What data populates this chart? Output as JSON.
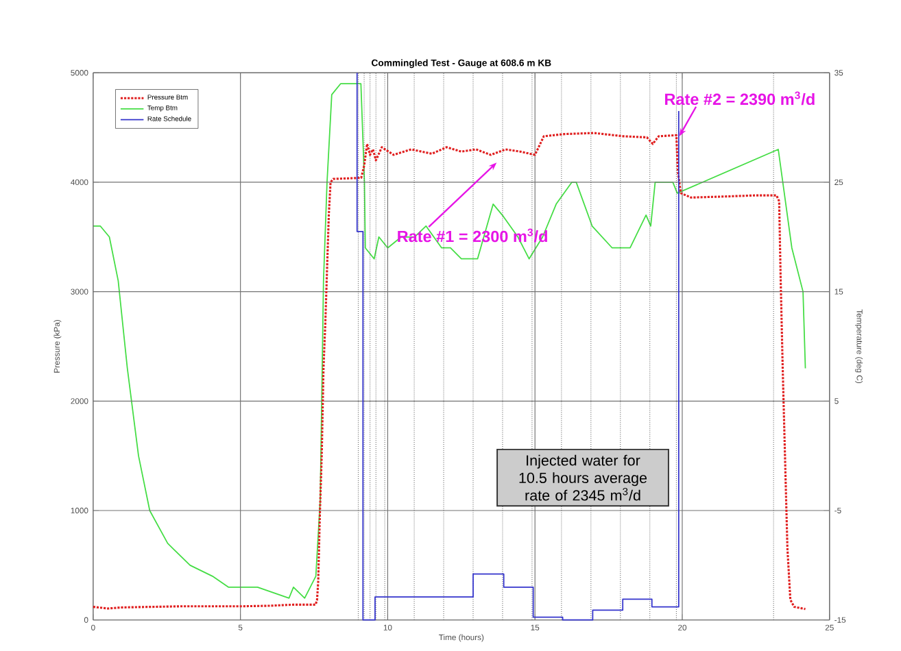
{
  "chart_data": {
    "type": "line",
    "title": "Commingled Test - Gauge at 608.6 m KB",
    "xlabel": "Time (hours)",
    "ylabel": "Pressure (kPa)",
    "y2label": "Temperature (deg C)",
    "xlim": [
      0,
      25
    ],
    "xticks": [
      0,
      5,
      10,
      15,
      20,
      25
    ],
    "ylim": [
      0,
      5000
    ],
    "yticks": [
      0,
      1000,
      2000,
      3000,
      4000,
      5000
    ],
    "y2lim": [
      -15,
      35
    ],
    "y2ticks": [
      -15,
      -5,
      5,
      15,
      25,
      35
    ],
    "grid": true,
    "legend": "top left",
    "series": [
      {
        "name": "Pressure Btm",
        "color": "#e02020",
        "line_style": "dotted",
        "x": [
          0,
          0.5,
          1,
          2,
          3,
          4,
          5,
          6,
          6.8,
          7.55,
          7.6,
          7.64,
          7.7,
          7.76,
          7.82,
          7.88,
          7.94,
          8.0,
          8.06,
          8.15,
          9.1,
          9.2,
          9.3,
          9.4,
          9.5,
          9.6,
          9.8,
          10.2,
          10.8,
          11.5,
          12,
          12.5,
          13,
          13.5,
          14,
          14.5,
          15,
          15.3,
          16,
          17,
          18,
          18.8,
          19.0,
          19.2,
          19.8,
          19.85,
          19.95,
          20.3,
          21.5,
          22.5,
          23.2,
          23.29,
          23.34,
          23.41,
          23.49,
          23.57,
          23.67,
          23.8,
          24.18
        ],
        "values": [
          120,
          105,
          115,
          120,
          125,
          125,
          125,
          130,
          140,
          140,
          180,
          350,
          1000,
          1500,
          2300,
          2700,
          3200,
          3700,
          4000,
          4030,
          4040,
          4150,
          4350,
          4250,
          4300,
          4200,
          4320,
          4250,
          4300,
          4260,
          4320,
          4280,
          4300,
          4250,
          4300,
          4280,
          4250,
          4420,
          4440,
          4450,
          4420,
          4410,
          4350,
          4420,
          4430,
          4100,
          3900,
          3860,
          3870,
          3880,
          3880,
          3827,
          3128,
          2305,
          1481,
          658,
          185,
          120,
          100
        ]
      },
      {
        "name": "Temp Btm",
        "color": "#44dd44",
        "axis": "y2",
        "x": [
          0,
          0.24,
          0.55,
          0.85,
          1.16,
          1.54,
          1.92,
          2.53,
          3.29,
          4.05,
          4.59,
          4.82,
          5.05,
          5.58,
          6.65,
          6.8,
          7.18,
          7.56,
          7.71,
          7.82,
          7.94,
          8.1,
          8.4,
          9.09,
          9.21,
          9.24,
          9.54,
          9.7,
          10,
          10.46,
          10.91,
          11.3,
          11.83,
          12.13,
          12.5,
          13.05,
          13.58,
          13.89,
          14.42,
          14.8,
          15.26,
          15.72,
          16.25,
          16.4,
          16.94,
          17.62,
          18.23,
          18.77,
          18.93,
          19.08,
          19.68,
          19.83,
          23.26,
          23.72,
          24.1,
          24.18
        ],
        "values": [
          21,
          21,
          20,
          16,
          8,
          0,
          -5,
          -8,
          -10,
          -11,
          -12,
          -12,
          -12,
          -12,
          -13,
          -12,
          -13,
          -11,
          -4,
          16,
          25,
          33,
          34,
          34,
          25,
          19,
          18,
          20,
          19,
          20,
          20,
          21,
          19,
          19,
          18,
          18,
          23,
          22,
          20,
          18,
          20,
          23,
          25,
          25,
          21,
          19,
          19,
          22,
          21,
          25,
          25,
          24,
          28,
          19,
          15,
          8
        ]
      },
      {
        "name": "Rate Schedule",
        "color": "#3333cc",
        "x": [
          8.96,
          8.96,
          9.16,
          9.16,
          9.57,
          9.57,
          12.9,
          12.9,
          13.94,
          13.94,
          14.94,
          14.94,
          15.94,
          15.94,
          16.96,
          16.96,
          17.98,
          17.98,
          18.97,
          18.97,
          19.88,
          19.88
        ],
        "values": [
          5000,
          3550,
          3550,
          0,
          0,
          210,
          210,
          420,
          420,
          300,
          300,
          25,
          25,
          0,
          0,
          90,
          90,
          190,
          190,
          120,
          120,
          4650
        ]
      }
    ],
    "ref_lines": [
      {
        "axis": "x",
        "value": 9.0,
        "line_style": "dotted"
      },
      {
        "axis": "x",
        "value": 9.2,
        "line_style": "dotted"
      },
      {
        "axis": "x",
        "value": 9.4,
        "line_style": "dotted"
      },
      {
        "axis": "x",
        "value": 9.6,
        "line_style": "dotted"
      },
      {
        "axis": "x",
        "value": 9.9,
        "line_style": "dotted"
      },
      {
        "axis": "x",
        "value": 10.9,
        "line_style": "dotted"
      },
      {
        "axis": "x",
        "value": 11.9,
        "line_style": "dotted"
      },
      {
        "axis": "x",
        "value": 12.9,
        "line_style": "dotted"
      },
      {
        "axis": "x",
        "value": 13.9,
        "line_style": "dotted"
      },
      {
        "axis": "x",
        "value": 14.9,
        "line_style": "dotted"
      },
      {
        "axis": "x",
        "value": 15.9,
        "line_style": "dotted"
      },
      {
        "axis": "x",
        "value": 16.9,
        "line_style": "dotted"
      },
      {
        "axis": "x",
        "value": 17.9,
        "line_style": "dotted"
      },
      {
        "axis": "x",
        "value": 18.9,
        "line_style": "dotted"
      },
      {
        "axis": "x",
        "value": 19.8,
        "line_style": "dotted"
      },
      {
        "axis": "x",
        "value": 23.1,
        "line_style": "dotted"
      }
    ],
    "annotations": [
      {
        "text": "Rate #1 = 2300 m$^{3}$/d",
        "x": 13.7,
        "y": 4180
      },
      {
        "text": "Rate #2 = 2390 m$^{3}$/d",
        "x": 19.9,
        "y": 4420
      },
      "Injected water for 10.5 hours average rate of 2345 m$^{3}$/d"
    ]
  }
}
